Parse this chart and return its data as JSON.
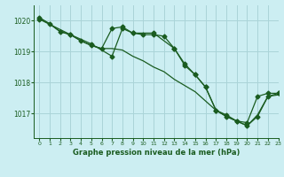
{
  "bg_color": "#cceef2",
  "grid_color": "#aad4d8",
  "line_color": "#1a5c20",
  "title": "Graphe pression niveau de la mer (hPa)",
  "xlim": [
    -0.5,
    23
  ],
  "ylim": [
    1016.2,
    1020.5
  ],
  "yticks": [
    1017,
    1018,
    1019,
    1020
  ],
  "xticks": [
    0,
    1,
    2,
    3,
    4,
    5,
    6,
    7,
    8,
    9,
    10,
    11,
    12,
    13,
    14,
    15,
    16,
    17,
    18,
    19,
    20,
    21,
    22,
    23
  ],
  "series1_x": [
    0,
    1,
    2,
    3,
    4,
    5,
    6,
    7,
    8,
    9,
    10,
    11,
    12,
    13,
    14,
    15,
    16,
    17,
    18,
    19,
    20,
    21,
    22,
    23
  ],
  "series1_y": [
    1020.1,
    1019.9,
    1019.65,
    1019.55,
    1019.35,
    1019.2,
    1019.1,
    1019.75,
    1019.8,
    1019.6,
    1019.55,
    1019.55,
    1019.5,
    1019.1,
    1018.55,
    1018.25,
    1017.85,
    1017.1,
    1016.95,
    1016.75,
    1016.7,
    1017.55,
    1017.65,
    1017.65
  ],
  "series2_x": [
    0,
    1,
    2,
    3,
    4,
    5,
    6,
    7,
    8,
    9,
    10,
    11,
    12,
    13,
    14,
    15,
    16,
    17,
    18,
    19,
    20,
    21,
    22,
    23
  ],
  "series2_y": [
    1020.1,
    1019.9,
    1019.65,
    1019.55,
    1019.35,
    1019.2,
    1019.1,
    1019.1,
    1019.05,
    1018.85,
    1018.7,
    1018.5,
    1018.35,
    1018.1,
    1017.9,
    1017.7,
    1017.4,
    1017.1,
    1016.9,
    1016.75,
    1016.6,
    1016.95,
    1017.55,
    1017.6
  ],
  "series3_x": [
    0,
    3,
    5,
    7,
    8,
    9,
    11,
    13,
    14,
    15,
    16,
    17,
    18,
    19,
    20,
    21,
    22,
    23
  ],
  "series3_y": [
    1020.05,
    1019.55,
    1019.25,
    1018.85,
    1019.75,
    1019.6,
    1019.6,
    1019.1,
    1018.6,
    1018.25,
    1017.85,
    1017.1,
    1016.9,
    1016.75,
    1016.6,
    1016.9,
    1017.55,
    1017.65
  ],
  "marker_x_s1": [
    0,
    1,
    2,
    3,
    5,
    7,
    8,
    9,
    10,
    11,
    12,
    13,
    14,
    15,
    16,
    17,
    18,
    19,
    20,
    21,
    22,
    23
  ],
  "marker_x_s3": [
    0,
    3,
    5,
    7,
    8,
    9,
    11,
    13,
    14,
    15,
    16,
    17,
    18,
    19,
    20,
    21,
    22,
    23
  ]
}
